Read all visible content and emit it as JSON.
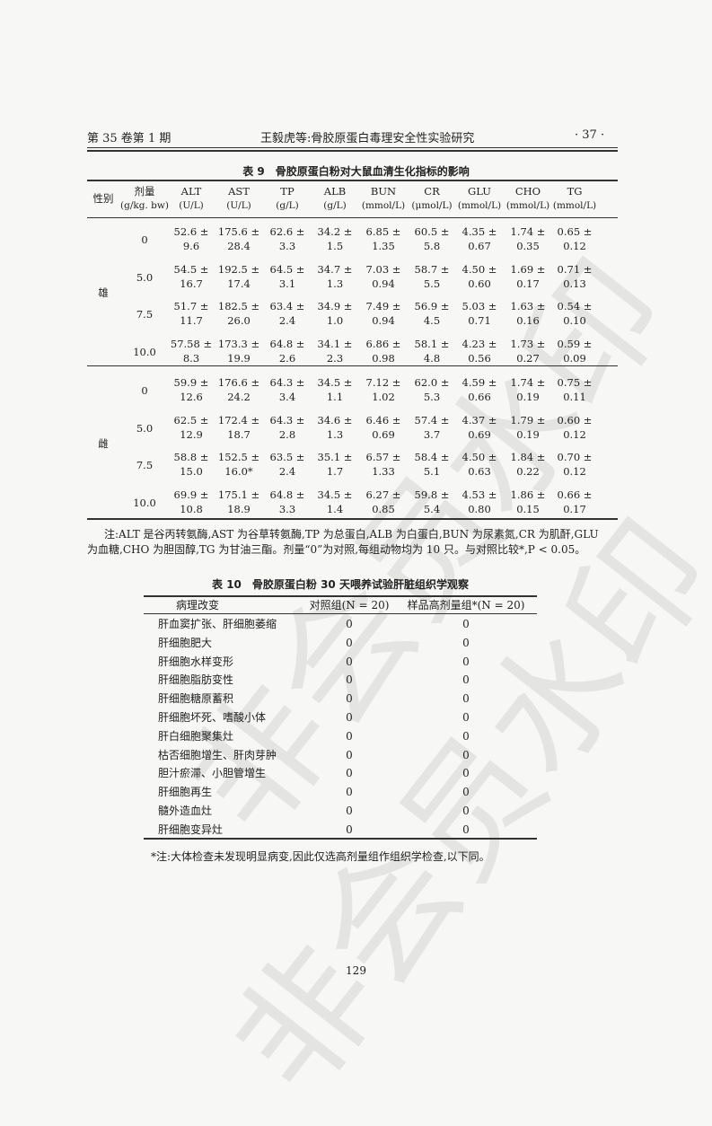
{
  "watermark": "非会员水印",
  "header": {
    "left": "第 35 卷第 1 期",
    "center": "王毅虎等:骨胶原蛋白毒理安全性实验研究",
    "right": "· 37 ·"
  },
  "table9": {
    "title": "表 9　骨胶原蛋白粉对大鼠血清生化指标的影响",
    "headers": [
      [
        "性别",
        ""
      ],
      [
        "剂量",
        "(g/kg. bw)"
      ],
      [
        "ALT",
        "(U/L)"
      ],
      [
        "AST",
        "(U/L)"
      ],
      [
        "TP",
        "(g/L)"
      ],
      [
        "ALB",
        "(g/L)"
      ],
      [
        "BUN",
        "(mmol/L)"
      ],
      [
        "CR",
        "(μmol/L)"
      ],
      [
        "GLU",
        "(mmol/L)"
      ],
      [
        "CHO",
        "(mmol/L)"
      ],
      [
        "TG",
        "(mmol/L)"
      ]
    ],
    "groups": [
      {
        "sex": "雄",
        "rows": [
          {
            "dose": "0",
            "values": [
              [
                "52.6 ±",
                "9.6"
              ],
              [
                "175.6 ±",
                "28.4"
              ],
              [
                "62.6 ±",
                "3.3"
              ],
              [
                "34.2 ±",
                "1.5"
              ],
              [
                "6.85 ±",
                "1.35"
              ],
              [
                "60.5 ±",
                "5.8"
              ],
              [
                "4.35 ±",
                "0.67"
              ],
              [
                "1.74 ±",
                "0.35"
              ],
              [
                "0.65 ±",
                "0.12"
              ]
            ]
          },
          {
            "dose": "5.0",
            "values": [
              [
                "54.5 ±",
                "16.7"
              ],
              [
                "192.5 ±",
                "17.4"
              ],
              [
                "64.5 ±",
                "3.1"
              ],
              [
                "34.7 ±",
                "1.3"
              ],
              [
                "7.03 ±",
                "0.94"
              ],
              [
                "58.7 ±",
                "5.5"
              ],
              [
                "4.50 ±",
                "0.60"
              ],
              [
                "1.69 ±",
                "0.17"
              ],
              [
                "0.71 ±",
                "0.13"
              ]
            ]
          },
          {
            "dose": "7.5",
            "values": [
              [
                "51.7 ±",
                "11.7"
              ],
              [
                "182.5 ±",
                "26.0"
              ],
              [
                "63.4 ±",
                "2.4"
              ],
              [
                "34.9 ±",
                "1.0"
              ],
              [
                "7.49 ±",
                "0.94"
              ],
              [
                "56.9 ±",
                "4.5"
              ],
              [
                "5.03 ±",
                "0.71"
              ],
              [
                "1.63 ±",
                "0.16"
              ],
              [
                "0.54 ±",
                "0.10"
              ]
            ]
          },
          {
            "dose": "10.0",
            "values": [
              [
                "57.58 ±",
                "8.3"
              ],
              [
                "173.3 ±",
                "19.9"
              ],
              [
                "64.8 ±",
                "2.6"
              ],
              [
                "34.1 ±",
                "2.3"
              ],
              [
                "6.86 ±",
                "0.98"
              ],
              [
                "58.1 ±",
                "4.8"
              ],
              [
                "4.23 ±",
                "0.56"
              ],
              [
                "1.73 ±",
                "0.27"
              ],
              [
                "0.59 ±",
                "0.09"
              ]
            ]
          }
        ]
      },
      {
        "sex": "雌",
        "rows": [
          {
            "dose": "0",
            "values": [
              [
                "59.9 ±",
                "12.6"
              ],
              [
                "176.6 ±",
                "24.2"
              ],
              [
                "64.3 ±",
                "3.4"
              ],
              [
                "34.5 ±",
                "1.1"
              ],
              [
                "7.12 ±",
                "1.02"
              ],
              [
                "62.0 ±",
                "5.3"
              ],
              [
                "4.59 ±",
                "0.66"
              ],
              [
                "1.74 ±",
                "0.19"
              ],
              [
                "0.75 ±",
                "0.11"
              ]
            ]
          },
          {
            "dose": "5.0",
            "values": [
              [
                "62.5 ±",
                "12.9"
              ],
              [
                "172.4 ±",
                "18.7"
              ],
              [
                "64.3 ±",
                "2.8"
              ],
              [
                "34.6 ±",
                "1.3"
              ],
              [
                "6.46 ±",
                "0.69"
              ],
              [
                "57.4 ±",
                "3.7"
              ],
              [
                "4.37 ±",
                "0.69"
              ],
              [
                "1.79 ±",
                "0.19"
              ],
              [
                "0.60 ±",
                "0.12"
              ]
            ]
          },
          {
            "dose": "7.5",
            "values": [
              [
                "58.8 ±",
                "15.0"
              ],
              [
                "152.5 ±",
                "16.0*"
              ],
              [
                "63.5 ±",
                "2.4"
              ],
              [
                "35.1 ±",
                "1.7"
              ],
              [
                "6.57 ±",
                "1.33"
              ],
              [
                "58.4 ±",
                "5.1"
              ],
              [
                "4.50 ±",
                "0.63"
              ],
              [
                "1.84 ±",
                "0.22"
              ],
              [
                "0.70 ±",
                "0.12"
              ]
            ]
          },
          {
            "dose": "10.0",
            "values": [
              [
                "69.9 ±",
                "10.8"
              ],
              [
                "175.1 ±",
                "18.9"
              ],
              [
                "64.8 ±",
                "3.3"
              ],
              [
                "34.5 ±",
                "1.4"
              ],
              [
                "6.27 ±",
                "0.85"
              ],
              [
                "59.8 ±",
                "5.4"
              ],
              [
                "4.53 ±",
                "0.80"
              ],
              [
                "1.86 ±",
                "0.15"
              ],
              [
                "0.66 ±",
                "0.17"
              ]
            ]
          }
        ]
      }
    ],
    "note_line1": "注:ALT 是谷丙转氨酶,AST 为谷草转氨酶,TP 为总蛋白,ALB 为白蛋白,BUN 为尿素氮,CR 为肌酐,GLU",
    "note_line2": "为血糖,CHO 为胆固醇,TG 为甘油三酯。剂量“0”为对照,每组动物均为 10 只。与对照比较*,P < 0.05。"
  },
  "table10": {
    "title": "表 10　骨胶原蛋白粉 30 天喂养试验肝脏组织学观察",
    "headers": [
      "病理改变",
      "对照组(N = 20)",
      "样品高剂量组*(N = 20)"
    ],
    "rows": [
      [
        "肝血窦扩张、肝细胞萎缩",
        "0",
        "0"
      ],
      [
        "肝细胞肥大",
        "0",
        "0"
      ],
      [
        "肝细胞水样变形",
        "0",
        "0"
      ],
      [
        "肝细胞脂肪变性",
        "0",
        "0"
      ],
      [
        "肝细胞糖原蓄积",
        "0",
        "0"
      ],
      [
        "肝细胞坏死、嗜酸小体",
        "0",
        "0"
      ],
      [
        "肝白细胞聚集灶",
        "0",
        "0"
      ],
      [
        "枯否细胞增生、肝肉芽肿",
        "0",
        "0"
      ],
      [
        "胆汁瘀滞、小胆管增生",
        "0",
        "0"
      ],
      [
        "肝细胞再生",
        "0",
        "0"
      ],
      [
        "髓外造血灶",
        "0",
        "0"
      ],
      [
        "肝细胞变异灶",
        "0",
        "0"
      ]
    ],
    "note": "*注:大体检查未发现明显病变,因此仅选高剂量组作组织学检查,以下同。"
  },
  "page_number": "129"
}
